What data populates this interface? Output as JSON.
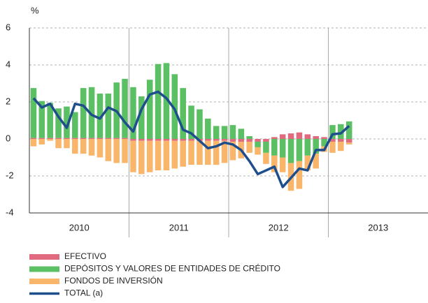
{
  "chart_data": {
    "type": "bar",
    "y_unit": "%",
    "categories": [
      null,
      null,
      null,
      null,
      null,
      null,
      null,
      null,
      null,
      null,
      null,
      null,
      null,
      null,
      null,
      null,
      null,
      null,
      null,
      null,
      null,
      null,
      null,
      null,
      null,
      null,
      null,
      null,
      null,
      null,
      null,
      null,
      null,
      null,
      null,
      null,
      null,
      null,
      null
    ],
    "x_groups": [
      "2010",
      "2011",
      "2012",
      "2013"
    ],
    "series": [
      {
        "name": "EFECTIVO",
        "color": "#e06a80",
        "style": "bar",
        "values": [
          0.05,
          0.05,
          0.05,
          0.05,
          0.05,
          0.05,
          0.05,
          0.05,
          0.05,
          0.05,
          0.05,
          0.05,
          -0.1,
          -0.1,
          -0.1,
          -0.1,
          -0.1,
          -0.1,
          -0.1,
          -0.1,
          -0.1,
          -0.1,
          -0.1,
          -0.1,
          -0.15,
          -0.15,
          -0.15,
          -0.15,
          -0.15,
          0.1,
          0.25,
          0.3,
          0.35,
          0.25,
          0.15,
          0.1,
          -0.15,
          -0.15,
          -0.2
        ]
      },
      {
        "name": "DEPÓSITOS Y VALORES DE ENTIDADES DE CRÉDITO",
        "color": "#5bbf63",
        "style": "bar",
        "values": [
          2.7,
          2.0,
          1.9,
          1.6,
          1.7,
          1.4,
          2.7,
          2.75,
          2.4,
          2.4,
          3.0,
          3.2,
          2.8,
          2.3,
          3.2,
          4.05,
          4.1,
          3.5,
          2.75,
          1.8,
          1.6,
          1.1,
          0.7,
          0.7,
          0.75,
          0.55,
          0.15,
          -0.3,
          -0.6,
          -0.9,
          -1.0,
          -1.3,
          -1.2,
          -0.9,
          -0.8,
          -0.4,
          0.75,
          0.8,
          0.95
        ]
      },
      {
        "name": "FONDOS DE INVERSIÓN",
        "color": "#f9b66b",
        "style": "bar",
        "values": [
          -0.4,
          -0.3,
          -0.1,
          -0.5,
          -0.5,
          -0.8,
          -0.8,
          -0.9,
          -1.0,
          -1.2,
          -1.3,
          -1.3,
          -1.7,
          -1.8,
          -1.7,
          -1.6,
          -1.6,
          -1.5,
          -1.4,
          -1.3,
          -1.3,
          -1.3,
          -1.3,
          -1.2,
          -1.0,
          -0.9,
          -0.6,
          -0.4,
          -0.6,
          -0.9,
          -0.8,
          -1.5,
          -1.5,
          -0.8,
          -0.8,
          -0.3,
          -0.6,
          -0.5,
          -0.1
        ]
      },
      {
        "name": "TOTAL (a)",
        "color": "#1f4e8c",
        "style": "line",
        "values": [
          2.2,
          1.7,
          1.9,
          1.2,
          0.6,
          1.9,
          1.8,
          1.3,
          1.1,
          1.7,
          1.5,
          0.9,
          0.4,
          1.6,
          2.4,
          2.55,
          2.2,
          1.6,
          0.5,
          0.3,
          -0.1,
          -0.5,
          -0.4,
          -0.2,
          -0.3,
          -0.6,
          -1.2,
          -1.9,
          -1.7,
          -1.5,
          -2.6,
          -2.1,
          -1.6,
          -1.7,
          -0.6,
          -0.6,
          0.25,
          0.3,
          0.7
        ]
      }
    ],
    "ylim": [
      -4,
      6
    ],
    "yticks": [
      -4,
      -2,
      0,
      2,
      4,
      6
    ],
    "grid": true
  }
}
